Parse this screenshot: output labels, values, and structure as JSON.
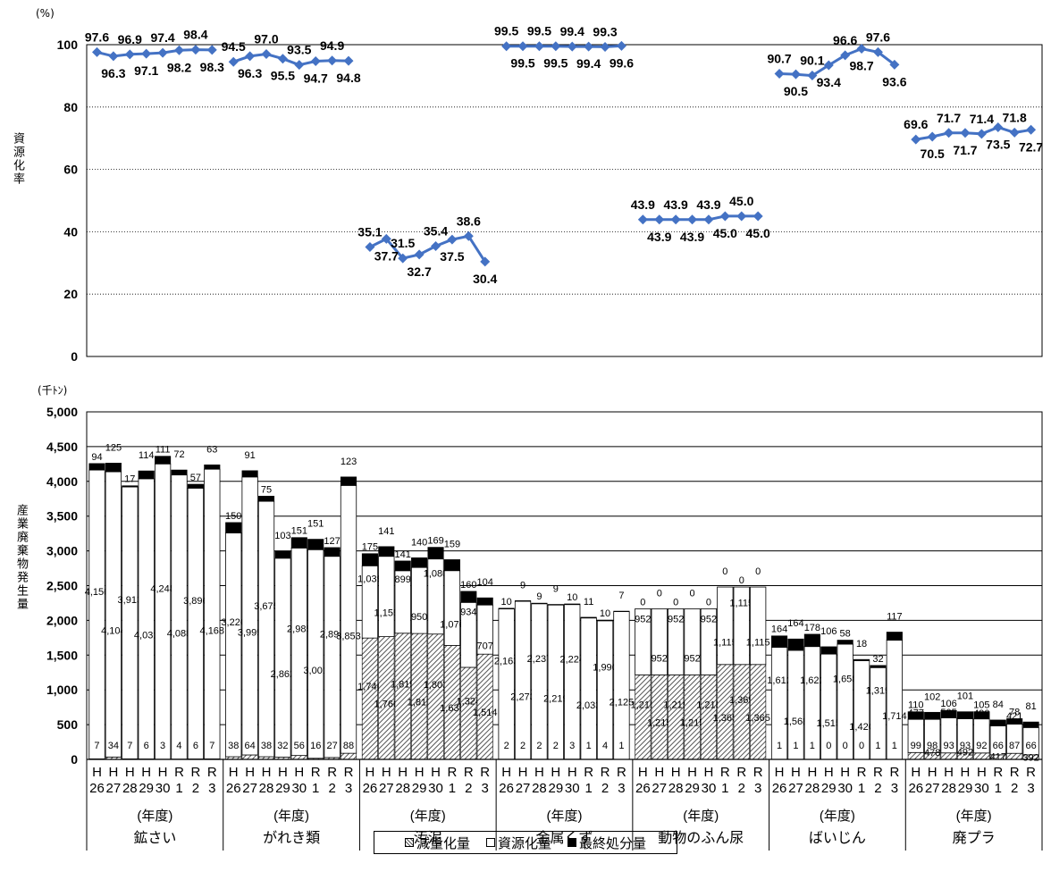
{
  "line_chart": {
    "unit": "(%)",
    "ylabel": "資源化率",
    "ylim": [
      0,
      100
    ],
    "yticks": [
      "0",
      "20",
      "40",
      "60",
      "80",
      "100"
    ]
  },
  "bar_chart": {
    "unit": "(千ﾄﾝ)",
    "ylabel": "産業廃棄物発生量",
    "ylim": [
      0,
      5000
    ],
    "yticks": [
      "0",
      "500",
      "1,000",
      "1,500",
      "2,000",
      "2,500",
      "3,000",
      "3,500",
      "4,000",
      "4,500",
      "5,000"
    ],
    "year_unit_label": "(年度)"
  },
  "legend": {
    "reduction": "減量化量",
    "recycled": "資源化量",
    "final": "最終処分量"
  },
  "colors": {
    "line": "#4472C4",
    "bar_fill": "#ffffff",
    "final": "#000000",
    "hatch": "#555555"
  },
  "chart_data": [
    {
      "type": "line",
      "ylabel": "資源化率",
      "unit": "(%)",
      "ylim": [
        0,
        100
      ],
      "grid": true,
      "years": [
        "H26",
        "H27",
        "H28",
        "H29",
        "H30",
        "R1",
        "R2",
        "R3"
      ],
      "series": [
        {
          "name": "鉱さい",
          "values": [
            97.6,
            96.3,
            96.9,
            97.1,
            97.4,
            98.2,
            98.4,
            98.3
          ]
        },
        {
          "name": "がれき類",
          "values": [
            94.5,
            96.3,
            97.0,
            95.5,
            93.5,
            94.7,
            94.9,
            94.8
          ]
        },
        {
          "name": "汚泥",
          "values": [
            35.1,
            37.7,
            31.5,
            32.7,
            35.4,
            37.5,
            38.6,
            30.4
          ]
        },
        {
          "name": "金属くず",
          "values": [
            99.5,
            99.5,
            99.5,
            99.5,
            99.4,
            99.4,
            99.3,
            99.6
          ]
        },
        {
          "name": "動物のふん尿",
          "values": [
            43.9,
            43.9,
            43.9,
            43.9,
            43.9,
            45.0,
            45.0,
            45.0
          ]
        },
        {
          "name": "ばいじん",
          "values": [
            90.7,
            90.5,
            90.1,
            93.4,
            96.6,
            98.7,
            97.6,
            93.6
          ]
        },
        {
          "name": "廃プラ",
          "values": [
            69.6,
            70.5,
            71.7,
            71.7,
            71.4,
            73.5,
            71.8,
            72.7
          ]
        }
      ]
    },
    {
      "type": "bar",
      "stacked": true,
      "ylabel": "産業廃棄物発生量",
      "unit": "(千ﾄﾝ)",
      "ylim": [
        0,
        5000
      ],
      "xlabel": "(年度)",
      "years": [
        {
          "era": "H",
          "num": "26"
        },
        {
          "era": "H",
          "num": "27"
        },
        {
          "era": "H",
          "num": "28"
        },
        {
          "era": "H",
          "num": "29"
        },
        {
          "era": "H",
          "num": "30"
        },
        {
          "era": "R",
          "num": "1"
        },
        {
          "era": "R",
          "num": "2"
        },
        {
          "era": "R",
          "num": "3"
        }
      ],
      "categories": [
        {
          "name": "鉱さい",
          "reduction": [
            7,
            34,
            7,
            6,
            3,
            4,
            6,
            7
          ],
          "recycled": [
            4156,
            4104,
            3913,
            4031,
            4248,
            4088,
            3896,
            4168
          ],
          "final": [
            94,
            125,
            17,
            114,
            111,
            72,
            57,
            63
          ]
        },
        {
          "name": "がれき類",
          "reduction": [
            38,
            64,
            38,
            32,
            56,
            16,
            27,
            88
          ],
          "recycled": [
            3220,
            3999,
            3675,
            2862,
            2985,
            3001,
            2894,
            3853
          ],
          "final": [
            150,
            91,
            75,
            103,
            151,
            151,
            127,
            123
          ]
        },
        {
          "name": "汚泥",
          "reduction": [
            1746,
            1766,
            1815,
            1811,
            1803,
            1639,
            1324,
            1514
          ],
          "recycled": [
            1039,
            1155,
            899,
            950,
            1080,
            1076,
            934,
            707
          ],
          "final": [
            175,
            141,
            141,
            140,
            169,
            159,
            160,
            104
          ]
        },
        {
          "name": "金属くず",
          "reduction": [
            2,
            2,
            2,
            2,
            3,
            1,
            4,
            1
          ],
          "recycled": [
            2163,
            2273,
            2237,
            2219,
            2224,
            2033,
            1990,
            2125
          ],
          "final": [
            10,
            9,
            9,
            9,
            10,
            11,
            10,
            7
          ]
        },
        {
          "name": "動物のふん尿",
          "reduction": [
            1215,
            1215,
            1215,
            1215,
            1215,
            1365,
            1365,
            1365
          ],
          "recycled": [
            952,
            952,
            952,
            952,
            952,
            1115,
            1115,
            1115
          ],
          "final": [
            0,
            0,
            0,
            0,
            0,
            0,
            0,
            0
          ]
        },
        {
          "name": "ばいじん",
          "reduction": [
            1,
            1,
            1,
            0,
            0,
            0,
            1,
            1
          ],
          "recycled": [
            1612,
            1568,
            1622,
            1515,
            1658,
            1420,
            1319,
            1714
          ],
          "final": [
            164,
            164,
            178,
            106,
            58,
            18,
            32,
            117
          ]
        },
        {
          "name": "廃プラ",
          "reduction": [
            99,
            98,
            93,
            93,
            92,
            66,
            87,
            66
          ],
          "recycled": [
            477,
            478,
            505,
            492,
            490,
            417,
            421,
            392
          ],
          "final": [
            110,
            102,
            106,
            101,
            105,
            84,
            78,
            81
          ]
        }
      ]
    }
  ]
}
